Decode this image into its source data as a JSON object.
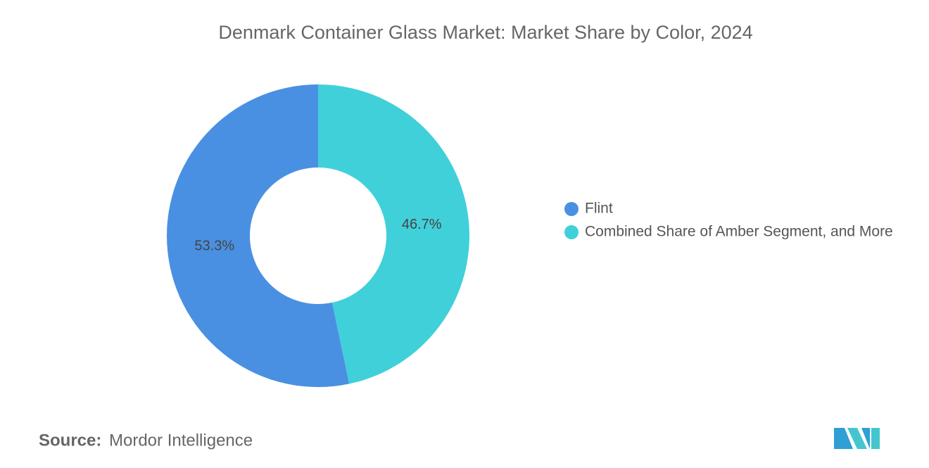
{
  "chart_data": {
    "type": "donut",
    "title": "Denmark Container Glass Market: Market Share by Color, 2024",
    "categories": [
      "Flint",
      "Combined Share of Amber Segment, and More"
    ],
    "values": [
      53.3,
      46.7
    ],
    "value_labels": [
      "53.3%",
      "46.7%"
    ],
    "colors": [
      "#4a90e2",
      "#40d0da"
    ],
    "legend": "right"
  },
  "footer": {
    "source_label": "Source:",
    "source": "Mordor Intelligence"
  }
}
